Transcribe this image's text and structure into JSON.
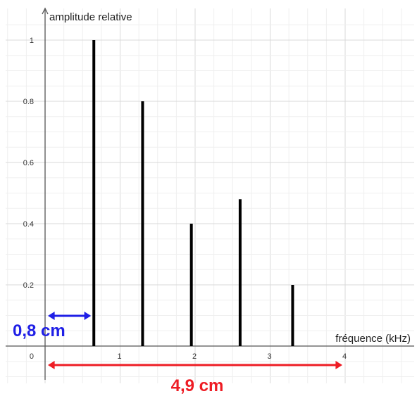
{
  "chart_data": {
    "type": "bar",
    "title": "",
    "xlabel": "fréquence (kHz)",
    "ylabel": "amplitude relative",
    "xlim": [
      0,
      4.8
    ],
    "ylim": [
      0,
      1.05
    ],
    "grid": true,
    "x": [
      0.65,
      1.3,
      1.95,
      2.6,
      3.3
    ],
    "values": [
      1,
      0.8,
      0.4,
      0.48,
      0.2
    ],
    "x_ticks": [
      {
        "value": 1,
        "label": "1"
      },
      {
        "value": 2,
        "label": "2"
      },
      {
        "value": 3,
        "label": "3"
      },
      {
        "value": 4,
        "label": "4"
      }
    ],
    "y_ticks": [
      {
        "value": 0.2,
        "label": "0.2"
      },
      {
        "value": 0.4,
        "label": "0.4"
      },
      {
        "value": 0.6,
        "label": "0.6"
      },
      {
        "value": 0.8,
        "label": "0.8"
      },
      {
        "value": 1,
        "label": "1"
      }
    ],
    "origin_label": "0",
    "annotations": {
      "blue": {
        "text": "0,8 cm",
        "color": "#1f1fe6",
        "from": 0,
        "to": 0.65
      },
      "red": {
        "text": "4,9 cm",
        "color": "#ee1c24",
        "from": 0,
        "to": 4
      }
    }
  }
}
